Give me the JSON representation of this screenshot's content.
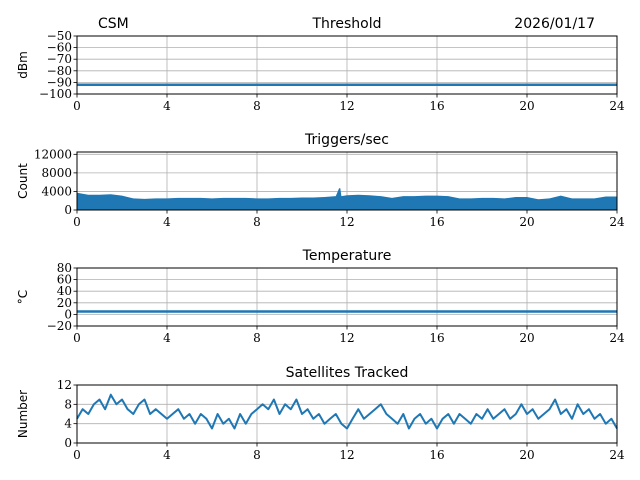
{
  "header": {
    "left": "CSM",
    "right": "2026/01/17"
  },
  "chart_data": [
    {
      "type": "line",
      "title": "Threshold",
      "ylabel": "dBm",
      "xlim": [
        0,
        24
      ],
      "ylim": [
        -100,
        -50
      ],
      "xticks": [
        "0",
        "4",
        "8",
        "12",
        "16",
        "20",
        "24"
      ],
      "yticks": [
        "−50",
        "−60",
        "−70",
        "−80",
        "−90",
        "−100"
      ],
      "ytick_values": [
        -50,
        -60,
        -70,
        -80,
        -90,
        -100
      ],
      "grid": true,
      "color": "#1f77b4",
      "x": [
        0,
        24
      ],
      "y": [
        -92,
        -92
      ]
    },
    {
      "type": "area",
      "title": "Triggers/sec",
      "ylabel": "Count",
      "xlim": [
        0,
        24
      ],
      "ylim": [
        0,
        12500
      ],
      "xticks": [
        "0",
        "4",
        "8",
        "12",
        "16",
        "20",
        "24"
      ],
      "yticks": [
        "12000",
        "8000",
        "4000",
        "0"
      ],
      "ytick_values": [
        12000,
        8000,
        4000,
        0
      ],
      "grid": true,
      "color": "#1f77b4",
      "x": [
        0,
        0.5,
        1,
        1.5,
        2,
        2.5,
        3,
        3.5,
        4,
        4.5,
        5,
        5.5,
        6,
        6.5,
        7,
        7.5,
        8,
        8.5,
        9,
        9.5,
        10,
        10.5,
        11,
        11.5,
        11.65,
        11.7,
        11.75,
        12,
        12.5,
        13,
        13.5,
        14,
        14.5,
        15,
        15.5,
        16,
        16.5,
        17,
        17.5,
        18,
        18.5,
        19,
        19.5,
        20,
        20.5,
        21,
        21.5,
        22,
        22.5,
        23,
        23.5,
        24
      ],
      "y": [
        3700,
        3300,
        3300,
        3400,
        3100,
        2500,
        2400,
        2500,
        2500,
        2600,
        2600,
        2600,
        2500,
        2600,
        2600,
        2600,
        2500,
        2500,
        2600,
        2600,
        2700,
        2700,
        2800,
        3000,
        4700,
        4700,
        3000,
        3200,
        3300,
        3200,
        3000,
        2600,
        3000,
        3000,
        3100,
        3100,
        3000,
        2500,
        2500,
        2600,
        2600,
        2500,
        2800,
        2800,
        2300,
        2500,
        3100,
        2500,
        2500,
        2500,
        2900,
        2900
      ]
    },
    {
      "type": "line",
      "title": "Temperature",
      "ylabel": "°C",
      "xlim": [
        0,
        24
      ],
      "ylim": [
        -20,
        80
      ],
      "xticks": [
        "0",
        "4",
        "8",
        "12",
        "16",
        "20",
        "24"
      ],
      "yticks": [
        "80",
        "60",
        "40",
        "20",
        "0",
        "−20"
      ],
      "ytick_values": [
        80,
        60,
        40,
        20,
        0,
        -20
      ],
      "grid": true,
      "color": "#1f77b4",
      "x": [
        0,
        24
      ],
      "y": [
        5,
        5
      ]
    },
    {
      "type": "line",
      "title": "Satellites Tracked",
      "ylabel": "Number",
      "xlim": [
        0,
        24
      ],
      "ylim": [
        0,
        12
      ],
      "xticks": [
        "0",
        "4",
        "8",
        "12",
        "16",
        "20",
        "24"
      ],
      "yticks": [
        "12",
        "8",
        "4",
        "0"
      ],
      "ytick_values": [
        12,
        8,
        4,
        0
      ],
      "grid": true,
      "color": "#1f77b4",
      "x_step": 0.25,
      "y": [
        5,
        7,
        6,
        8,
        9,
        7,
        10,
        8,
        9,
        7,
        6,
        8,
        9,
        6,
        7,
        6,
        5,
        6,
        7,
        5,
        6,
        4,
        6,
        5,
        3,
        6,
        4,
        5,
        3,
        6,
        4,
        6,
        7,
        8,
        7,
        9,
        6,
        8,
        7,
        9,
        6,
        7,
        5,
        6,
        4,
        5,
        6,
        4,
        3,
        5,
        7,
        5,
        6,
        7,
        8,
        6,
        5,
        4,
        6,
        3,
        5,
        6,
        4,
        5,
        3,
        5,
        6,
        4,
        6,
        5,
        4,
        6,
        5,
        7,
        5,
        6,
        7,
        5,
        6,
        8,
        6,
        7,
        5,
        6,
        7,
        9,
        6,
        7,
        5,
        8,
        6,
        7,
        5,
        6,
        4,
        5,
        3
      ]
    }
  ]
}
